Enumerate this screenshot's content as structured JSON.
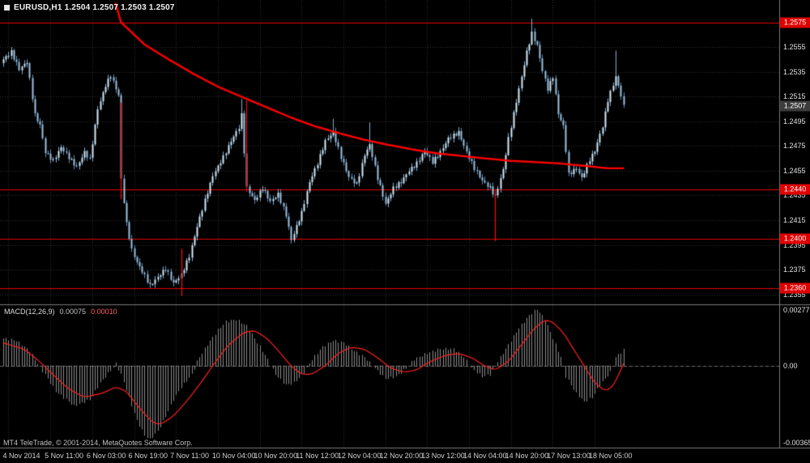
{
  "window": {
    "title": "EURUSD,H1 1.2504 1.2507 1.2503 1.2507",
    "copyright": "MT4 TeleTrade, © 2001-2014, MetaQuotes Software Corp."
  },
  "colors": {
    "background": "#000000",
    "grid": "#333333",
    "separator": "#7A7A7A",
    "axis_text": "#E0E0E0",
    "candle_up_fill": "#D6EBF9",
    "candle_up_border": "#7FAFD4",
    "candle_down_fill": "#9DC2E0",
    "candle_down_border": "#5E8FBB",
    "ma_line": "#FF0000",
    "level_line": "#E80000",
    "level_tag_bg": "#DF0000",
    "level_tag_text": "#FFFFFF",
    "bid_tag_bg": "#3C3C3C",
    "bid_tag_text": "#FFFFFF",
    "macd_histogram": "#8C8C8C",
    "macd_signal": "#FF2020",
    "zero_line": "#6A6A6A",
    "red_segment": "#E81010"
  },
  "chart_data": {
    "type": "candlestick",
    "symbol": "EURUSD",
    "timeframe": "H1",
    "title": "EURUSD,H1 1.2504 1.2507 1.2503 1.2507",
    "quote": {
      "open": 1.2504,
      "high": 1.2507,
      "low": 1.2503,
      "close": 1.2507
    },
    "bid": {
      "value": 1.2507,
      "label": "1.2507"
    },
    "layout": {
      "grid": true,
      "panes": [
        "price",
        "macd"
      ],
      "legend": "none"
    },
    "price_axis": {
      "min": 1.2347,
      "max": 1.2593,
      "ticks": [
        {
          "value": 1.2555,
          "label": "1.2555"
        },
        {
          "value": 1.2535,
          "label": "1.2535"
        },
        {
          "value": 1.2515,
          "label": "1.2515"
        },
        {
          "value": 1.2495,
          "label": "1.2495"
        },
        {
          "value": 1.2475,
          "label": "1.2475"
        },
        {
          "value": 1.2455,
          "label": "1.2455"
        },
        {
          "value": 1.2435,
          "label": "1.2435"
        },
        {
          "value": 1.2415,
          "label": "1.2415"
        },
        {
          "value": 1.2395,
          "label": "1.2395"
        },
        {
          "value": 1.2375,
          "label": "1.2375"
        },
        {
          "value": 1.2355,
          "label": "1.2355"
        }
      ]
    },
    "levels": [
      {
        "value": 1.2575,
        "label": "1.2575"
      },
      {
        "value": 1.244,
        "label": "1.2440"
      },
      {
        "value": 1.24,
        "label": "1.2400"
      },
      {
        "value": 1.236,
        "label": "1.2360"
      }
    ],
    "time_axis": {
      "labels": [
        "4 Nov 2014",
        "5 Nov 11:00",
        "6 Nov 03:00",
        "6 Nov 19:00",
        "7 Nov 11:00",
        "10 Nov 04:00",
        "10 Nov 20:00",
        "11 Nov 12:00",
        "12 Nov 04:00",
        "12 Nov 20:00",
        "13 Nov 12:00",
        "14 Nov 04:00",
        "14 Nov 20:00",
        "17 Nov 13:00",
        "18 Nov 05:00"
      ],
      "first_label_bar": 2,
      "bars_per_label": 16
    },
    "bar_count": 238,
    "close_path": [
      [
        0,
        1.2545
      ],
      [
        3,
        1.2551
      ],
      [
        6,
        1.2537
      ],
      [
        9,
        1.2543
      ],
      [
        12,
        1.25
      ],
      [
        14,
        1.2492
      ],
      [
        16,
        1.247
      ],
      [
        19,
        1.2463
      ],
      [
        22,
        1.2474
      ],
      [
        26,
        1.2463
      ],
      [
        28,
        1.2458
      ],
      [
        31,
        1.247
      ],
      [
        33,
        1.2464
      ],
      [
        36,
        1.2505
      ],
      [
        39,
        1.2524
      ],
      [
        41,
        1.2532
      ],
      [
        44,
        1.2516
      ],
      [
        45,
        1.2448
      ],
      [
        47,
        1.2412
      ],
      [
        49,
        1.2391
      ],
      [
        51,
        1.2381
      ],
      [
        54,
        1.237
      ],
      [
        56,
        1.2362
      ],
      [
        59,
        1.2369
      ],
      [
        62,
        1.2376
      ],
      [
        65,
        1.2364
      ],
      [
        68,
        1.2371
      ],
      [
        71,
        1.2386
      ],
      [
        74,
        1.241
      ],
      [
        77,
        1.2431
      ],
      [
        80,
        1.2451
      ],
      [
        84,
        1.2466
      ],
      [
        87,
        1.2479
      ],
      [
        90,
        1.249
      ],
      [
        91,
        1.25
      ],
      [
        93,
        1.2441
      ],
      [
        96,
        1.2431
      ],
      [
        99,
        1.2441
      ],
      [
        102,
        1.243
      ],
      [
        105,
        1.2436
      ],
      [
        108,
        1.2419
      ],
      [
        110,
        1.2399
      ],
      [
        114,
        1.2421
      ],
      [
        117,
        1.2446
      ],
      [
        120,
        1.2461
      ],
      [
        123,
        1.2479
      ],
      [
        126,
        1.2486
      ],
      [
        129,
        1.2466
      ],
      [
        132,
        1.245
      ],
      [
        135,
        1.2444
      ],
      [
        138,
        1.2468
      ],
      [
        140,
        1.2476
      ],
      [
        143,
        1.2449
      ],
      [
        146,
        1.2428
      ],
      [
        149,
        1.2441
      ],
      [
        152,
        1.2446
      ],
      [
        155,
        1.2455
      ],
      [
        158,
        1.2461
      ],
      [
        161,
        1.2471
      ],
      [
        164,
        1.2462
      ],
      [
        167,
        1.247
      ],
      [
        170,
        1.2481
      ],
      [
        174,
        1.2486
      ],
      [
        177,
        1.247
      ],
      [
        180,
        1.2457
      ],
      [
        183,
        1.2447
      ],
      [
        186,
        1.2441
      ],
      [
        188,
        1.2434
      ],
      [
        191,
        1.2456
      ],
      [
        193,
        1.2481
      ],
      [
        196,
        1.2511
      ],
      [
        198,
        1.2531
      ],
      [
        200,
        1.2551
      ],
      [
        202,
        1.2566
      ],
      [
        204,
        1.2556
      ],
      [
        206,
        1.2536
      ],
      [
        208,
        1.2521
      ],
      [
        210,
        1.2531
      ],
      [
        212,
        1.2501
      ],
      [
        214,
        1.2491
      ],
      [
        216,
        1.2452
      ],
      [
        219,
        1.2457
      ],
      [
        221,
        1.2449
      ],
      [
        224,
        1.2464
      ],
      [
        226,
        1.2471
      ],
      [
        229,
        1.2491
      ],
      [
        231,
        1.2512
      ],
      [
        234,
        1.2531
      ],
      [
        236,
        1.2516
      ],
      [
        237,
        1.2507
      ]
    ],
    "spikes": [
      {
        "bar": 68,
        "low": 1.2354
      },
      {
        "bar": 91,
        "high": 1.2513
      },
      {
        "bar": 110,
        "low": 1.2396
      },
      {
        "bar": 126,
        "high": 1.2497
      },
      {
        "bar": 140,
        "high": 1.2494
      },
      {
        "bar": 188,
        "low": 1.2398
      },
      {
        "bar": 202,
        "high": 1.2578
      },
      {
        "bar": 234,
        "high": 1.2552
      }
    ],
    "red_segments": [
      {
        "bar": 45,
        "from": 1.251,
        "to": 1.2432
      },
      {
        "bar": 68,
        "from": 1.2392,
        "to": 1.2354
      },
      {
        "bar": 93,
        "from": 1.2512,
        "to": 1.2438
      },
      {
        "bar": 188,
        "from": 1.244,
        "to": 1.2398
      }
    ],
    "ma_points": [
      [
        43,
        1.259
      ],
      [
        45,
        1.2575
      ],
      [
        54,
        1.2557
      ],
      [
        64,
        1.2544
      ],
      [
        73,
        1.2533
      ],
      [
        82,
        1.2523
      ],
      [
        92,
        1.2514
      ],
      [
        101,
        1.2506
      ],
      [
        110,
        1.2498
      ],
      [
        119,
        1.2491
      ],
      [
        129,
        1.2485
      ],
      [
        138,
        1.248
      ],
      [
        147,
        1.2476
      ],
      [
        157,
        1.2472
      ],
      [
        166,
        1.2469
      ],
      [
        175,
        1.2467
      ],
      [
        184,
        1.2465
      ],
      [
        194,
        1.2463
      ],
      [
        203,
        1.2462
      ],
      [
        212,
        1.2461
      ],
      [
        222,
        1.2459
      ],
      [
        231,
        1.2457
      ],
      [
        237,
        1.2457
      ]
    ],
    "macd": {
      "name": "MACD(12,26,9)",
      "value_main": "0.00075",
      "value_signal": "0.00010",
      "axis": {
        "min": -0.0039,
        "max": 0.0029,
        "ticks": [
          {
            "value": 0.00277,
            "label": "0.00277"
          },
          {
            "value": 0,
            "label": "0.00"
          },
          {
            "value": -0.00365,
            "label": "-0.00365"
          }
        ]
      },
      "histogram_path": [
        [
          0,
          0.0013
        ],
        [
          5,
          0.0012
        ],
        [
          10,
          0.0007
        ],
        [
          13,
          0.0001
        ],
        [
          16,
          -0.0004
        ],
        [
          20,
          -0.0012
        ],
        [
          27,
          -0.0019
        ],
        [
          33,
          -0.0016
        ],
        [
          37,
          -0.0008
        ],
        [
          41,
          -0.0002
        ],
        [
          43,
          0.0001
        ],
        [
          45,
          -0.0004
        ],
        [
          48,
          -0.0015
        ],
        [
          51,
          -0.0026
        ],
        [
          54,
          -0.0033
        ],
        [
          56,
          -0.0035
        ],
        [
          59,
          -0.0031
        ],
        [
          62,
          -0.0024
        ],
        [
          65,
          -0.0016
        ],
        [
          68,
          -0.001
        ],
        [
          72,
          -0.0004
        ],
        [
          74,
          0.0002
        ],
        [
          78,
          0.001
        ],
        [
          82,
          0.0017
        ],
        [
          85,
          0.0021
        ],
        [
          89,
          0.0022
        ],
        [
          93,
          0.0019
        ],
        [
          97,
          0.0011
        ],
        [
          101,
          0.0003
        ],
        [
          104,
          -0.0004
        ],
        [
          108,
          -0.0009
        ],
        [
          111,
          -0.0008
        ],
        [
          115,
          -0.0003
        ],
        [
          118,
          0.0003
        ],
        [
          122,
          0.0009
        ],
        [
          126,
          0.0012
        ],
        [
          130,
          0.0011
        ],
        [
          134,
          0.0007
        ],
        [
          138,
          0.0004
        ],
        [
          142,
          -0.0001
        ],
        [
          146,
          -0.0006
        ],
        [
          150,
          -0.0005
        ],
        [
          154,
          -0.0001
        ],
        [
          157,
          0.0003
        ],
        [
          162,
          0.0006
        ],
        [
          167,
          0.0008
        ],
        [
          172,
          0.0008
        ],
        [
          176,
          0.0004
        ],
        [
          179,
          -0.0001
        ],
        [
          183,
          -0.0005
        ],
        [
          186,
          -0.0004
        ],
        [
          189,
          0.0002
        ],
        [
          193,
          0.001
        ],
        [
          197,
          0.0018
        ],
        [
          201,
          0.0024
        ],
        [
          204,
          0.0027
        ],
        [
          207,
          0.0022
        ],
        [
          210,
          0.0013
        ],
        [
          213,
          0.0004
        ],
        [
          215,
          -0.0005
        ],
        [
          219,
          -0.0013
        ],
        [
          222,
          -0.0017
        ],
        [
          225,
          -0.0015
        ],
        [
          228,
          -0.0009
        ],
        [
          232,
          -0.0003
        ],
        [
          234,
          0.0004
        ],
        [
          237,
          0.00075
        ]
      ],
      "signal_path": [
        [
          0,
          0.0011
        ],
        [
          8,
          0.0008
        ],
        [
          14,
          0.0002
        ],
        [
          18,
          -0.0003
        ],
        [
          25,
          -0.0011
        ],
        [
          31,
          -0.0015
        ],
        [
          38,
          -0.0013
        ],
        [
          43,
          -0.001
        ],
        [
          47,
          -0.0012
        ],
        [
          52,
          -0.002
        ],
        [
          57,
          -0.0027
        ],
        [
          60,
          -0.0028
        ],
        [
          65,
          -0.0024
        ],
        [
          70,
          -0.0017
        ],
        [
          75,
          -0.0009
        ],
        [
          80,
          0.0
        ],
        [
          86,
          0.001
        ],
        [
          92,
          0.0016
        ],
        [
          96,
          0.0017
        ],
        [
          101,
          0.0013
        ],
        [
          106,
          0.0006
        ],
        [
          110,
          0.0
        ],
        [
          114,
          -0.0004
        ],
        [
          118,
          -0.0004
        ],
        [
          123,
          0.0
        ],
        [
          128,
          0.0006
        ],
        [
          133,
          0.0009
        ],
        [
          138,
          0.0008
        ],
        [
          143,
          0.0004
        ],
        [
          148,
          -0.0001
        ],
        [
          153,
          -0.0003
        ],
        [
          158,
          -0.0002
        ],
        [
          163,
          0.0002
        ],
        [
          169,
          0.0005
        ],
        [
          174,
          0.0006
        ],
        [
          179,
          0.0004
        ],
        [
          184,
          0.0
        ],
        [
          188,
          -0.0002
        ],
        [
          193,
          0.0002
        ],
        [
          198,
          0.001
        ],
        [
          203,
          0.0018
        ],
        [
          207,
          0.0022
        ],
        [
          210,
          0.0021
        ],
        [
          214,
          0.0016
        ],
        [
          218,
          0.0008
        ],
        [
          222,
          0.0
        ],
        [
          226,
          -0.0008
        ],
        [
          230,
          -0.0012
        ],
        [
          233,
          -0.001
        ],
        [
          236,
          -0.0002
        ],
        [
          237,
          0.0001
        ]
      ]
    }
  }
}
